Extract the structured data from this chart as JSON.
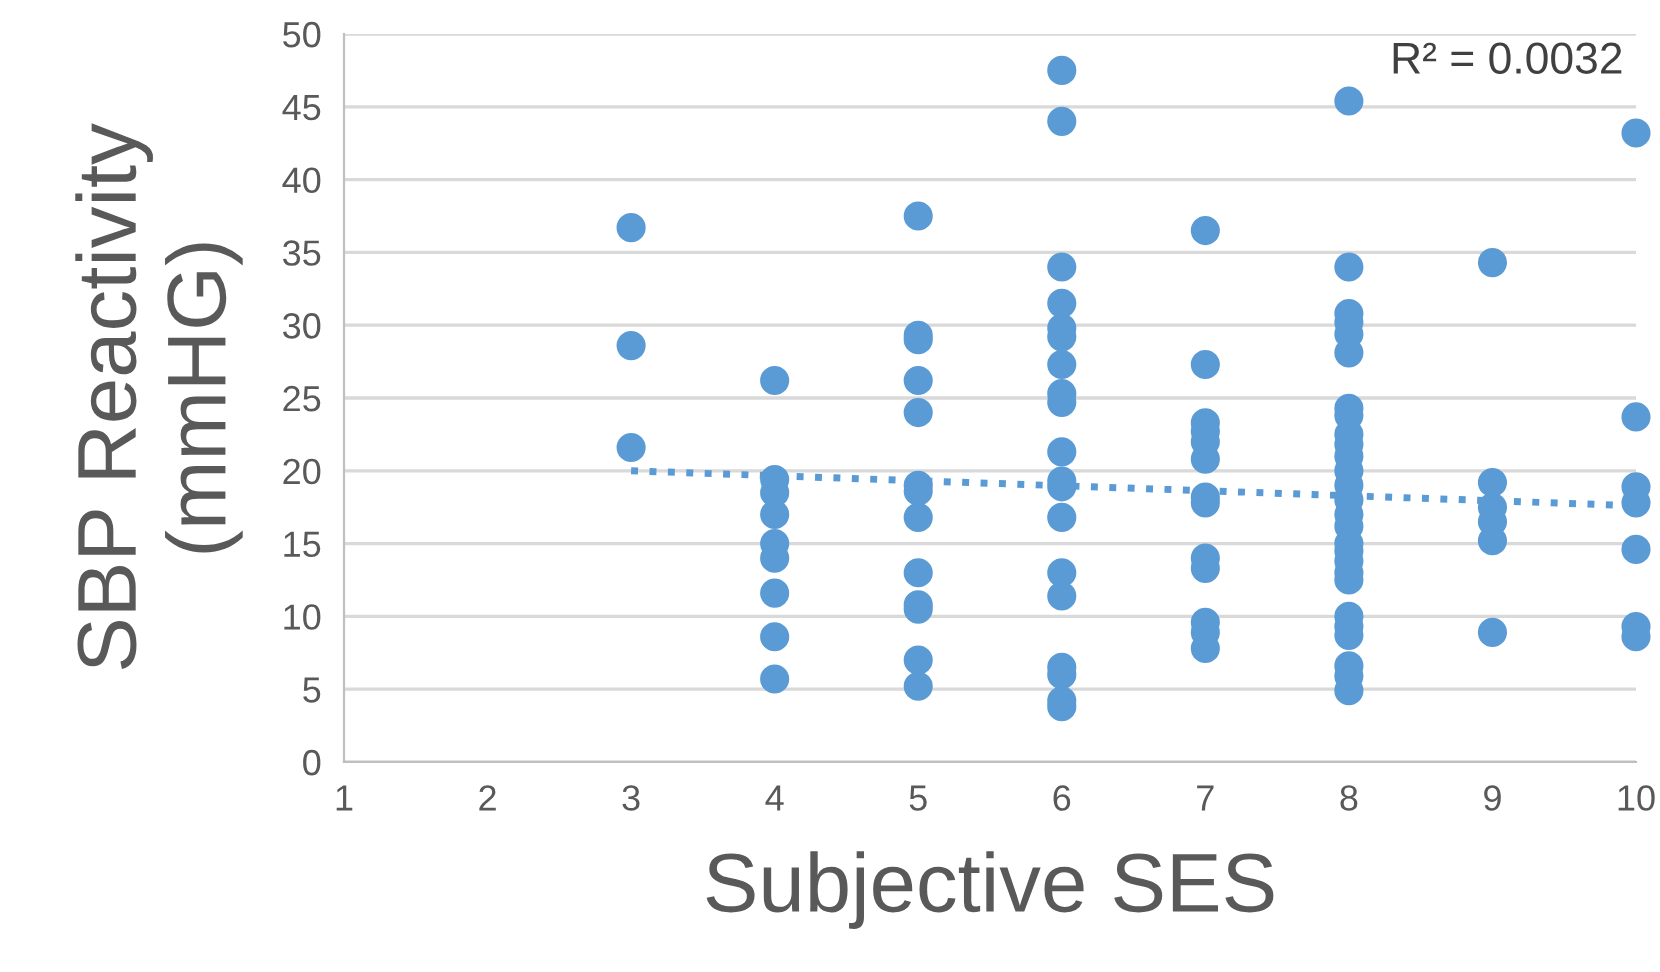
{
  "chart_data": {
    "type": "scatter",
    "xlabel": "Subjective SES",
    "ylabel": "SBP Reactivity\n(mmHG)",
    "annotations": [
      "R² = 0.0032"
    ],
    "xlim": [
      1,
      10
    ],
    "xticks": [
      1,
      2,
      3,
      4,
      5,
      6,
      7,
      8,
      9,
      10
    ],
    "ylim": [
      0,
      50
    ],
    "yticks": [
      0,
      5,
      10,
      15,
      20,
      25,
      30,
      35,
      40,
      45,
      50
    ],
    "grid": "y",
    "legend": false,
    "marker": "circle",
    "series": [
      {
        "color": "#5b9bd5",
        "x": [
          3,
          3,
          3,
          4,
          4,
          4,
          4,
          4,
          4,
          4,
          4,
          4,
          5,
          5,
          5,
          5,
          5,
          5,
          5,
          5,
          5,
          5,
          5,
          5,
          5,
          6,
          6,
          6,
          6,
          6,
          6,
          6,
          6,
          6,
          6,
          6,
          6,
          6,
          6,
          6,
          6,
          6,
          6,
          6,
          7,
          7,
          7,
          7,
          7,
          7,
          7,
          7,
          7,
          7,
          7,
          7,
          7,
          8,
          8,
          8,
          8,
          8,
          8,
          8,
          8,
          8,
          8,
          8,
          8,
          8,
          8,
          8,
          8,
          8,
          8,
          8,
          8,
          8,
          8,
          8,
          8,
          8,
          8,
          8,
          9,
          9,
          9,
          9,
          9,
          9,
          10,
          10,
          10,
          10,
          10,
          10,
          10
        ],
        "values": [
          36.7,
          28.6,
          21.6,
          26.2,
          19.4,
          18.5,
          17.0,
          15.0,
          14.0,
          11.6,
          8.6,
          5.7,
          37.5,
          29.3,
          29.0,
          26.2,
          24.0,
          19.0,
          18.6,
          16.8,
          13.0,
          10.8,
          10.5,
          7.0,
          5.2,
          47.5,
          44.0,
          34.0,
          31.5,
          29.8,
          29.2,
          27.3,
          25.3,
          24.7,
          21.3,
          19.3,
          18.9,
          16.8,
          13.0,
          11.4,
          6.5,
          6.0,
          4.2,
          3.8,
          36.5,
          27.3,
          23.3,
          22.7,
          22.0,
          20.8,
          18.2,
          17.8,
          14.0,
          13.3,
          9.6,
          8.9,
          7.8,
          45.4,
          34.0,
          30.8,
          30.2,
          29.4,
          28.1,
          24.3,
          23.8,
          22.5,
          21.8,
          21.0,
          20.0,
          19.0,
          18.0,
          17.0,
          16.2,
          15.0,
          14.5,
          13.8,
          13.0,
          12.5,
          10.0,
          9.3,
          8.7,
          6.6,
          5.9,
          4.9,
          34.3,
          19.2,
          17.5,
          16.5,
          15.2,
          8.9,
          43.2,
          23.7,
          18.9,
          17.8,
          14.6,
          9.3,
          8.6
        ]
      },
      {
        "type": "line",
        "color": "#5b9bd5",
        "line_style": "dotted",
        "marker": "none",
        "x": [
          3,
          10
        ],
        "values": [
          20.0,
          17.6
        ]
      }
    ]
  }
}
